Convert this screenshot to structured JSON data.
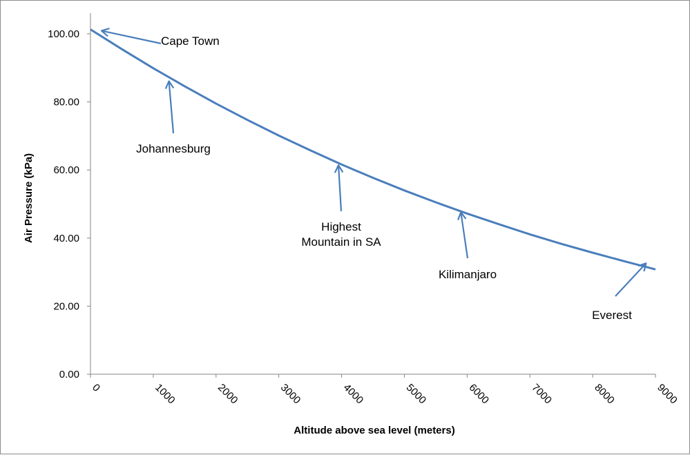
{
  "chart_data": {
    "type": "line",
    "title": "",
    "xlabel": "Altitude above sea level (meters)",
    "ylabel": "Air Pressure (kPa)",
    "xlim": [
      0,
      9000
    ],
    "ylim": [
      0,
      100
    ],
    "x_ticks": [
      "0",
      "1000",
      "2000",
      "3000",
      "4000",
      "5000",
      "6000",
      "7000",
      "8000",
      "9000"
    ],
    "y_ticks": [
      "0.00",
      "20.00",
      "40.00",
      "60.00",
      "80.00",
      "100.00"
    ],
    "grid": false,
    "legend": "none",
    "series": [
      {
        "color": "#4a7ebb",
        "x": [
          0,
          500,
          1000,
          1500,
          2000,
          2500,
          3000,
          3500,
          4000,
          4500,
          5000,
          5500,
          6000,
          6500,
          7000,
          7500,
          8000,
          8500,
          9000
        ],
        "y": [
          101.3,
          95.5,
          89.9,
          84.6,
          79.5,
          74.7,
          70.1,
          65.8,
          61.6,
          57.7,
          54.0,
          50.5,
          47.2,
          44.1,
          41.1,
          38.3,
          35.7,
          33.2,
          30.8
        ]
      }
    ],
    "annotations": [
      {
        "text": [
          "Cape Town"
        ],
        "x": 0,
        "y": 101.3
      },
      {
        "text": [
          "Johannesburg"
        ],
        "x": 1250,
        "y": 86.5
      },
      {
        "text": [
          "Highest",
          "Mountain in SA"
        ],
        "x": 3950,
        "y": 61.8
      },
      {
        "text": [
          "Kilimanjaro"
        ],
        "x": 5900,
        "y": 48.0
      },
      {
        "text": [
          "Everest"
        ],
        "x": 8850,
        "y": 33.0
      }
    ]
  }
}
